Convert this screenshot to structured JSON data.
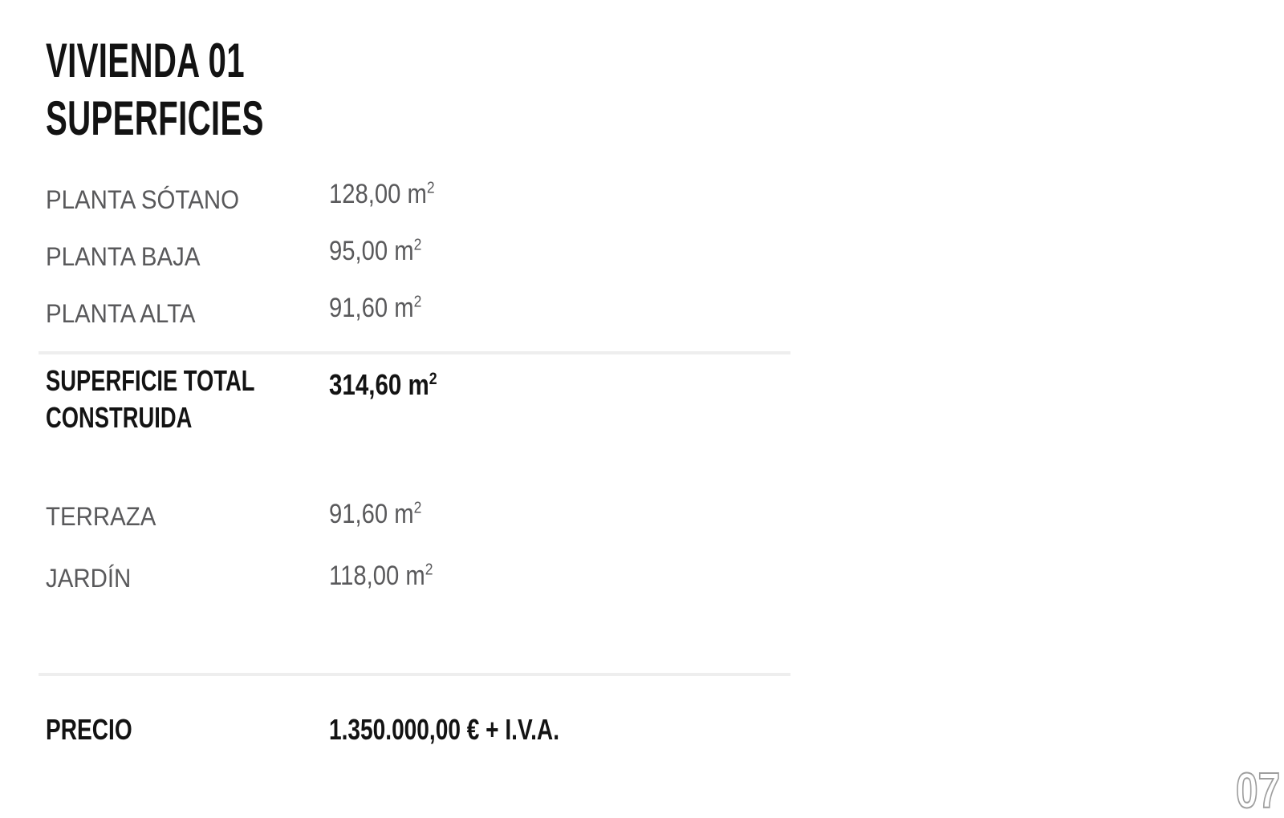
{
  "title": {
    "line1": "VIVIENDA 01",
    "line2": "SUPERFICIES"
  },
  "planta_rows": [
    {
      "label": "PLANTA SÓTANO",
      "value": "128,00 m",
      "sup": "2"
    },
    {
      "label": "PLANTA BAJA",
      "value": "95,00 m",
      "sup": "2"
    },
    {
      "label": "PLANTA ALTA",
      "value": "91,60 m",
      "sup": "2"
    }
  ],
  "total_row": {
    "label_line1": "SUPERFICIE TOTAL",
    "label_line2": "CONSTRUIDA",
    "value": "314,60 m",
    "sup": "2"
  },
  "outdoor_rows": [
    {
      "label": "TERRAZA",
      "value": "91,60 m",
      "sup": "2"
    },
    {
      "label": "JARDÍN",
      "value": "118,00 m",
      "sup": "2"
    }
  ],
  "price_row": {
    "label": "PRECIO",
    "value": "1.350.000,00 € + I.V.A."
  },
  "page_number": "07",
  "colors": {
    "bg": "#ffffff",
    "text_primary": "#131313",
    "text_secondary": "#59595b",
    "divider": "#eeeeee",
    "page_number_outline": "#9e9e9e"
  }
}
